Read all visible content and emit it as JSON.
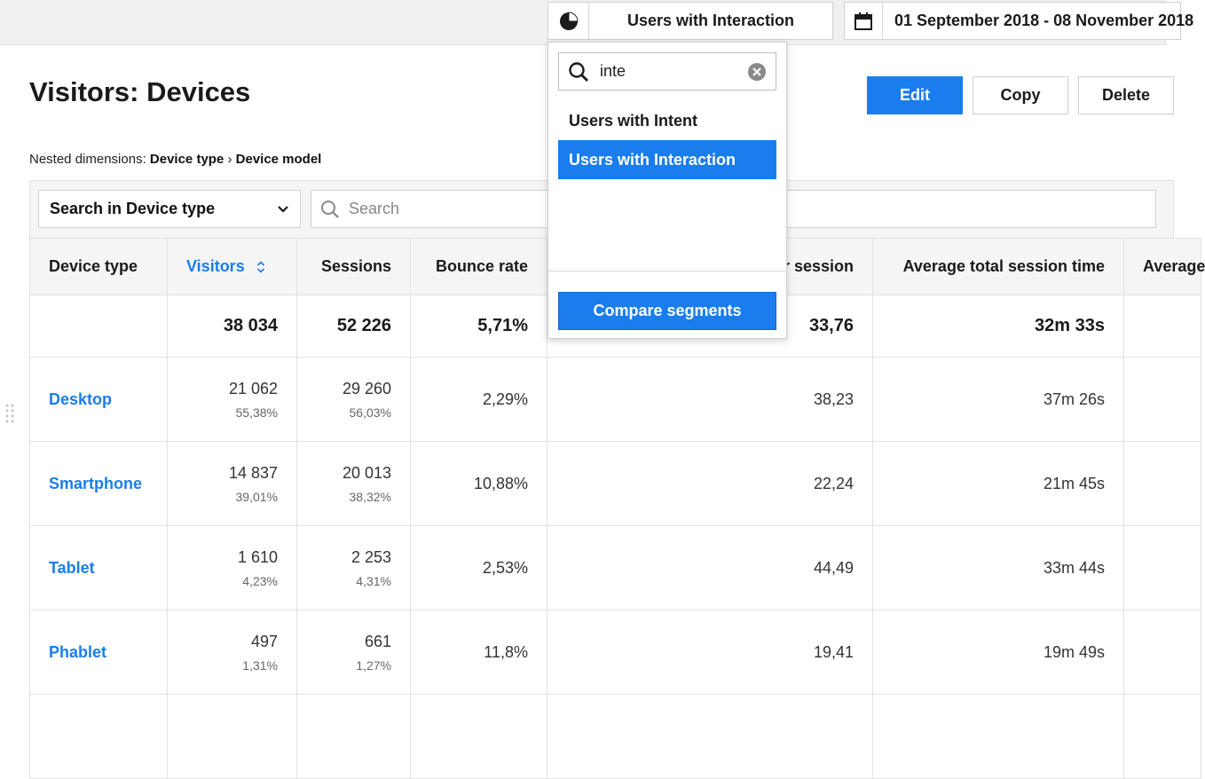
{
  "header": {
    "segment_label": "Users with Interaction",
    "date_range": "01 September 2018 - 08 November 2018"
  },
  "page": {
    "title": "Visitors: Devices",
    "actions": {
      "edit": "Edit",
      "copy": "Copy",
      "delete": "Delete"
    }
  },
  "nested": {
    "prefix": "Nested dimensions:",
    "dim1": "Device type",
    "sep": "›",
    "dim2": "Device model"
  },
  "filters": {
    "dimension_select": "Search in Device type",
    "search_placeholder": "Search"
  },
  "table": {
    "columns": [
      "Device type",
      "Visitors",
      "Sessions",
      "Bounce rate",
      "Average actions per session",
      "Average total session time",
      "Average"
    ],
    "totals": {
      "visitors": "38 034",
      "sessions": "52 226",
      "bounce_rate": "5,71%",
      "avg_actions": "33,76",
      "avg_time": "32m 33s"
    },
    "rows": [
      {
        "device": "Desktop",
        "visitors": "21 062",
        "visitors_pct": "55,38%",
        "sessions": "29 260",
        "sessions_pct": "56,03%",
        "bounce_rate": "2,29%",
        "avg_actions": "38,23",
        "avg_time": "37m 26s"
      },
      {
        "device": "Smartphone",
        "visitors": "14 837",
        "visitors_pct": "39,01%",
        "sessions": "20 013",
        "sessions_pct": "38,32%",
        "bounce_rate": "10,88%",
        "avg_actions": "22,24",
        "avg_time": "21m 45s"
      },
      {
        "device": "Tablet",
        "visitors": "1 610",
        "visitors_pct": "4,23%",
        "sessions": "2 253",
        "sessions_pct": "4,31%",
        "bounce_rate": "2,53%",
        "avg_actions": "44,49",
        "avg_time": "33m 44s"
      },
      {
        "device": "Phablet",
        "visitors": "497",
        "visitors_pct": "1,31%",
        "sessions": "661",
        "sessions_pct": "1,27%",
        "bounce_rate": "11,8%",
        "avg_actions": "19,41",
        "avg_time": "19m 49s"
      }
    ]
  },
  "segment_dropdown": {
    "search_value": "inte",
    "options": [
      {
        "label": "Users with Intent",
        "selected": false
      },
      {
        "label": "Users with Interaction",
        "selected": true
      }
    ],
    "compare_button": "Compare segments"
  },
  "icons": {
    "segment": "pie-chart-icon",
    "date": "calendar-icon",
    "search": "search-icon",
    "clear": "clear-icon",
    "dropdown": "chevron-down-icon",
    "sort": "sort-icon",
    "drag": "drag-handle-icon"
  },
  "colors": {
    "accent": "#1a7ded",
    "header_bg": "#f0f0f0",
    "table_header_bg": "#f5f5f5"
  }
}
